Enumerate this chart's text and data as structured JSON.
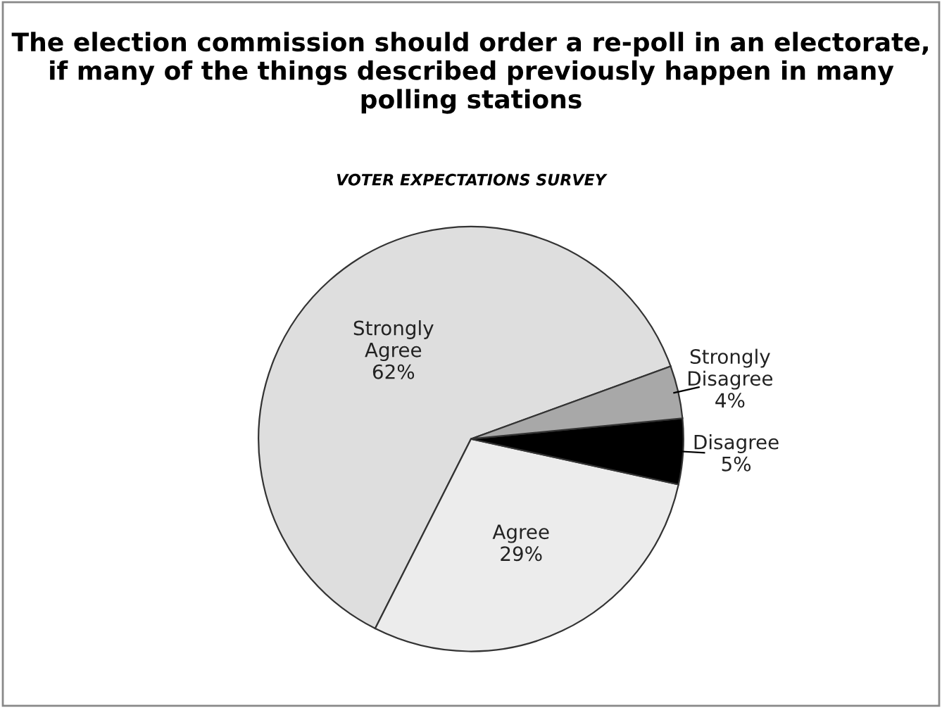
{
  "chart_data": {
    "type": "pie",
    "title": "The election commission should order a re-poll in an electorate, if many of the things described previously happen in many polling stations",
    "subtitle": "VOTER EXPECTATIONS SURVEY",
    "categories": [
      "Strongly\nAgree",
      "Agree",
      "Disagree",
      "Strongly\nDisagree"
    ],
    "values": [
      62,
      29,
      5,
      4
    ],
    "value_labels": [
      "62%",
      "29%",
      "5%",
      "4%"
    ],
    "colors": [
      "#dedede",
      "#ececec",
      "#000000",
      "#a8a8a8"
    ]
  }
}
